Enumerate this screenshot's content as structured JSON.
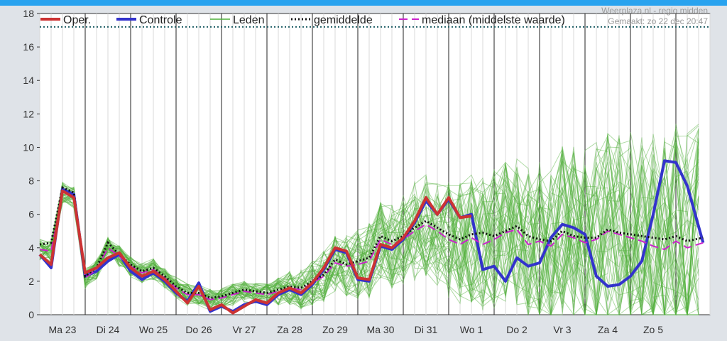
{
  "colors": {
    "top_bar": "#29a3ef",
    "background": "#dfe3e8",
    "plot_bg": "#ffffff",
    "oper": "#cc3333",
    "controle": "#3333cc",
    "leden": "#4fb03a",
    "gemiddelde": "#111111",
    "mediaan": "#cc22cc",
    "ref_line": "#1f5f66",
    "grid_minor": "#d8d8d8",
    "grid_major": "#222222",
    "axis_text": "#333333",
    "credit_text": "#9a9a9a"
  },
  "credit": {
    "line1": "Weerplaza.nl - regio midden",
    "line2": "Gemaakt: zo 22 dec 20:47"
  },
  "legend": [
    {
      "key": "oper",
      "label": "Oper."
    },
    {
      "key": "controle",
      "label": "Controle"
    },
    {
      "key": "leden",
      "label": "Leden"
    },
    {
      "key": "gemiddelde",
      "label": "gemiddelde"
    },
    {
      "key": "mediaan",
      "label": "mediaan (middelste waarde)"
    }
  ],
  "chart_data": {
    "type": "line",
    "ylim": [
      0,
      18
    ],
    "yticks": [
      0,
      2,
      4,
      6,
      8,
      10,
      12,
      14,
      16,
      18
    ],
    "day_labels": [
      "Ma 23",
      "Di 24",
      "Wo 25",
      "Do 26",
      "Vr 27",
      "Za 28",
      "Zo 29",
      "Ma 30",
      "Di 31",
      "Wo 1",
      "Do 2",
      "Vr 3",
      "Za 4",
      "Zo 5"
    ],
    "x_range_days": [
      0,
      14.6
    ],
    "reference_line": 17.2,
    "series": [
      {
        "key": "oper",
        "name": "Oper.",
        "x": [
          0,
          0.25,
          0.5,
          0.75,
          1,
          1.25,
          1.5,
          1.75,
          2,
          2.25,
          2.5,
          2.75,
          3,
          3.25,
          3.5,
          3.75,
          4,
          4.25,
          4.5,
          4.75,
          5,
          5.25,
          5.5,
          5.75,
          6,
          6.25,
          6.5,
          6.75,
          7,
          7.25,
          7.5,
          7.75,
          8,
          8.25,
          8.5,
          8.75,
          9,
          9.25,
          9.5
        ],
        "values": [
          3.6,
          3.0,
          7.4,
          7.0,
          2.5,
          2.8,
          3.4,
          3.7,
          2.8,
          2.3,
          2.6,
          2.1,
          1.4,
          0.7,
          1.7,
          0.3,
          0.6,
          0.1,
          0.5,
          0.9,
          0.7,
          1.3,
          1.6,
          1.3,
          1.9,
          2.8,
          4.0,
          3.8,
          2.2,
          2.1,
          4.2,
          4.0,
          4.6,
          5.6,
          7.0,
          6.0,
          7.0,
          5.8,
          5.9
        ]
      },
      {
        "key": "controle",
        "name": "Controle",
        "x": [
          0,
          0.25,
          0.5,
          0.75,
          1,
          1.25,
          1.5,
          1.75,
          2,
          2.25,
          2.5,
          2.75,
          3,
          3.25,
          3.5,
          3.75,
          4,
          4.25,
          4.5,
          4.75,
          5,
          5.25,
          5.5,
          5.75,
          6,
          6.25,
          6.5,
          6.75,
          7,
          7.25,
          7.5,
          7.75,
          8,
          8.25,
          8.5,
          8.75,
          9,
          9.25,
          9.5,
          9.75,
          10,
          10.25,
          10.5,
          10.75,
          11,
          11.25,
          11.5,
          11.75,
          12,
          12.25,
          12.5,
          12.75,
          13,
          13.25,
          13.5,
          13.75,
          14,
          14.25,
          14.6
        ],
        "values": [
          3.6,
          2.8,
          7.5,
          7.2,
          2.3,
          2.6,
          3.2,
          3.6,
          2.6,
          2.1,
          2.5,
          2.0,
          1.3,
          0.8,
          1.9,
          0.2,
          0.5,
          0.2,
          0.6,
          0.8,
          0.6,
          1.2,
          1.5,
          1.2,
          1.8,
          2.7,
          3.9,
          3.7,
          2.1,
          2.0,
          4.1,
          3.9,
          4.5,
          5.5,
          6.8,
          6.0,
          6.9,
          5.8,
          6.0,
          2.7,
          2.9,
          2.0,
          3.4,
          2.9,
          3.1,
          4.6,
          5.4,
          5.2,
          4.8,
          2.3,
          1.7,
          1.8,
          2.3,
          3.2,
          6.0,
          9.2,
          9.1,
          7.7,
          4.3
        ]
      },
      {
        "key": "gemiddelde",
        "name": "gemiddelde",
        "x": [
          0,
          0.25,
          0.5,
          0.75,
          1,
          1.25,
          1.5,
          1.75,
          2,
          2.25,
          2.5,
          2.75,
          3,
          3.25,
          3.5,
          3.75,
          4,
          4.25,
          4.5,
          4.75,
          5,
          5.25,
          5.5,
          5.75,
          6,
          6.25,
          6.5,
          6.75,
          7,
          7.25,
          7.5,
          7.75,
          8,
          8.25,
          8.5,
          8.75,
          9,
          9.25,
          9.5,
          9.75,
          10,
          10.25,
          10.5,
          10.75,
          11,
          11.25,
          11.5,
          11.75,
          12,
          12.25,
          12.5,
          12.75,
          13,
          13.25,
          13.5,
          13.75,
          14,
          14.25,
          14.6
        ],
        "values": [
          4.2,
          4.3,
          7.6,
          7.3,
          2.3,
          2.8,
          4.3,
          3.6,
          3.0,
          2.6,
          2.8,
          2.3,
          1.7,
          1.3,
          1.3,
          1.0,
          1.1,
          1.3,
          1.5,
          1.4,
          1.3,
          1.5,
          1.7,
          1.6,
          2.0,
          2.4,
          3.3,
          3.0,
          3.2,
          3.4,
          4.7,
          4.4,
          4.7,
          5.2,
          5.6,
          5.2,
          4.8,
          4.5,
          4.8,
          4.9,
          4.7,
          5.0,
          5.3,
          4.7,
          4.5,
          4.4,
          5.0,
          4.7,
          4.6,
          4.6,
          5.1,
          4.9,
          4.8,
          4.7,
          4.6,
          4.5,
          4.7,
          4.4,
          4.6
        ]
      },
      {
        "key": "mediaan",
        "name": "mediaan (middelste waarde)",
        "x": [
          0,
          0.25,
          0.5,
          0.75,
          1,
          1.25,
          1.5,
          1.75,
          2,
          2.25,
          2.5,
          2.75,
          3,
          3.25,
          3.5,
          3.75,
          4,
          4.25,
          4.5,
          4.75,
          5,
          5.25,
          5.5,
          5.75,
          6,
          6.25,
          6.5,
          6.75,
          7,
          7.25,
          7.5,
          7.75,
          8,
          8.25,
          8.5,
          8.75,
          9,
          9.25,
          9.5,
          9.75,
          10,
          10.25,
          10.5,
          10.75,
          11,
          11.25,
          11.5,
          11.75,
          12,
          12.25,
          12.5,
          12.75,
          13,
          13.25,
          13.5,
          13.75,
          14,
          14.25,
          14.6
        ],
        "values": [
          3.9,
          3.8,
          7.3,
          7.0,
          2.2,
          2.7,
          4.0,
          3.5,
          2.9,
          2.5,
          2.7,
          2.2,
          1.6,
          1.2,
          1.2,
          0.9,
          1.0,
          1.2,
          1.4,
          1.3,
          1.2,
          1.4,
          1.6,
          1.5,
          1.9,
          2.3,
          3.1,
          2.9,
          3.0,
          3.2,
          4.5,
          4.2,
          4.5,
          5.0,
          5.4,
          5.0,
          4.5,
          4.2,
          4.6,
          4.2,
          4.5,
          4.9,
          5.1,
          4.2,
          4.4,
          4.1,
          4.8,
          4.6,
          4.3,
          4.5,
          5.0,
          4.8,
          4.6,
          4.4,
          4.1,
          3.9,
          4.4,
          4.0,
          4.3
        ]
      }
    ]
  }
}
